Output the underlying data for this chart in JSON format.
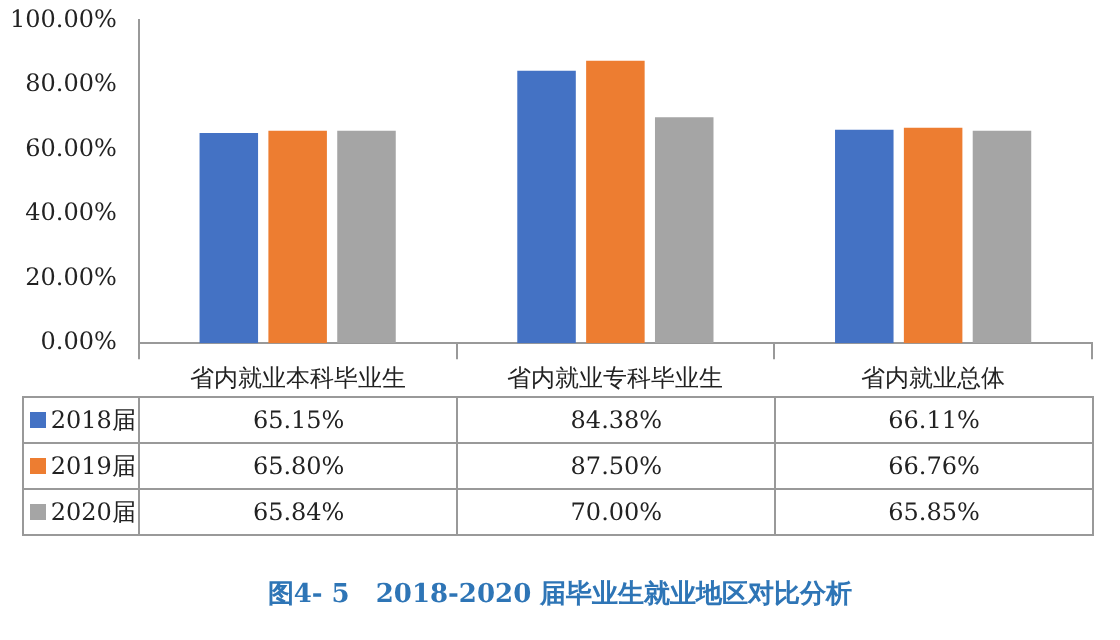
{
  "chart_data": {
    "type": "bar",
    "title": "图4- 5　2018-2020 届毕业生就业地区对比分析",
    "categories": [
      "省内就业本科毕业生",
      "省内就业专科毕业生",
      "省内就业总体"
    ],
    "series": [
      {
        "name": "2018届",
        "color": "#4472c4",
        "values": [
          65.15,
          84.38,
          66.11
        ],
        "value_labels": [
          "65.15%",
          "84.38%",
          "66.11%"
        ]
      },
      {
        "name": "2019届",
        "color": "#ed7d31",
        "values": [
          65.8,
          87.5,
          66.76
        ],
        "value_labels": [
          "65.80%",
          "87.50%",
          "66.76%"
        ]
      },
      {
        "name": "2020届",
        "color": "#a5a5a5",
        "values": [
          65.84,
          70,
          65.85
        ],
        "value_labels": [
          "65.84%",
          "70.00%",
          "65.85%"
        ]
      }
    ],
    "ylim": [
      0,
      100
    ],
    "yticks": [
      {
        "value": 0,
        "label": "0.00%"
      },
      {
        "value": 20,
        "label": "20.00%"
      },
      {
        "value": 40,
        "label": "40.00%"
      },
      {
        "value": 60,
        "label": "60.00%"
      },
      {
        "value": 80,
        "label": "80.00%"
      },
      {
        "value": 100,
        "label": "100.00%"
      }
    ],
    "grid": false,
    "legend": "bottom"
  }
}
